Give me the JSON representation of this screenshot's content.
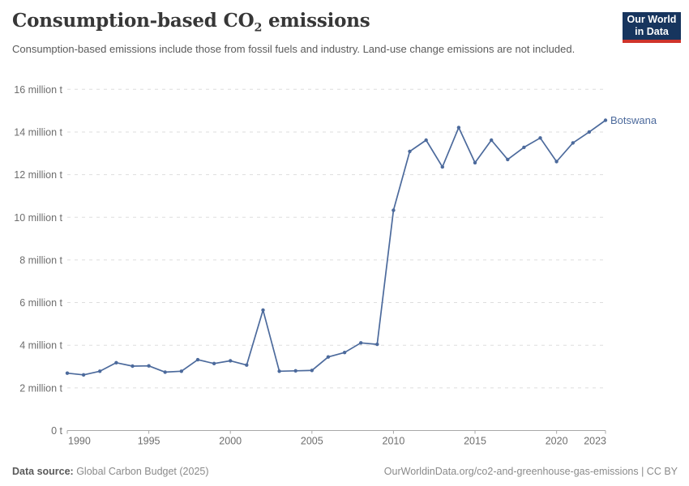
{
  "header": {
    "title_parts": {
      "pre": "Consumption-based CO",
      "sub": "2",
      "post": " emissions"
    },
    "subtitle": "Consumption-based emissions include those from fossil fuels and industry. Land-use change emissions are not included.",
    "logo": {
      "line1": "Our World",
      "line2": "in Data"
    }
  },
  "footer": {
    "datasource_label": "Data source:",
    "datasource_value": " Global Carbon Budget (2025)",
    "attribution": "OurWorldinData.org/co2-and-greenhouse-gas-emissions | CC BY"
  },
  "colors": {
    "series_line": "#4C6A9C",
    "title_text": "#373737",
    "tick_text": "#6e6e6e",
    "gridline": "#dedede",
    "axis_line": "#a8a8a8",
    "logo_background": "#17355e",
    "logo_accent_red": "#cf342b"
  },
  "chart_data": {
    "type": "line",
    "title": "Consumption-based CO₂ emissions",
    "subtitle": "Consumption-based emissions include those from fossil fuels and industry. Land-use change emissions are not included.",
    "xlabel": "",
    "ylabel": "",
    "xlim": [
      1990,
      2023
    ],
    "ylim": [
      0,
      16
    ],
    "grid": "horizontal-dashed",
    "legend_position": "end-of-line-label",
    "x": [
      1990,
      1991,
      1992,
      1993,
      1994,
      1995,
      1996,
      1997,
      1998,
      1999,
      2000,
      2001,
      2002,
      2003,
      2004,
      2005,
      2006,
      2007,
      2008,
      2009,
      2010,
      2011,
      2012,
      2013,
      2014,
      2015,
      2016,
      2017,
      2018,
      2019,
      2020,
      2021,
      2022,
      2023
    ],
    "series": [
      {
        "name": "Botswana",
        "values": [
          2.69,
          2.61,
          2.78,
          3.18,
          3.02,
          3.03,
          2.74,
          2.78,
          3.32,
          3.14,
          3.27,
          3.07,
          5.65,
          2.78,
          2.8,
          2.82,
          3.45,
          3.66,
          4.11,
          4.04,
          10.33,
          13.09,
          13.62,
          12.36,
          14.21,
          12.56,
          13.62,
          12.71,
          13.28,
          13.72,
          12.61,
          13.49,
          14.0,
          14.55
        ]
      }
    ],
    "y_axis_ticks": {
      "values": [
        0,
        2,
        4,
        6,
        8,
        10,
        12,
        14,
        16
      ],
      "labels": [
        "0 t",
        "2 million t",
        "4 million t",
        "6 million t",
        "8 million t",
        "10 million t",
        "12 million t",
        "14 million t",
        "16 million t"
      ]
    },
    "x_axis_ticks": {
      "values": [
        1990,
        1995,
        2000,
        2005,
        2010,
        2015,
        2020,
        2023
      ],
      "labels": [
        "1990",
        "1995",
        "2000",
        "2005",
        "2010",
        "2015",
        "2020",
        "2023"
      ]
    },
    "series_end_label": "Botswana"
  }
}
